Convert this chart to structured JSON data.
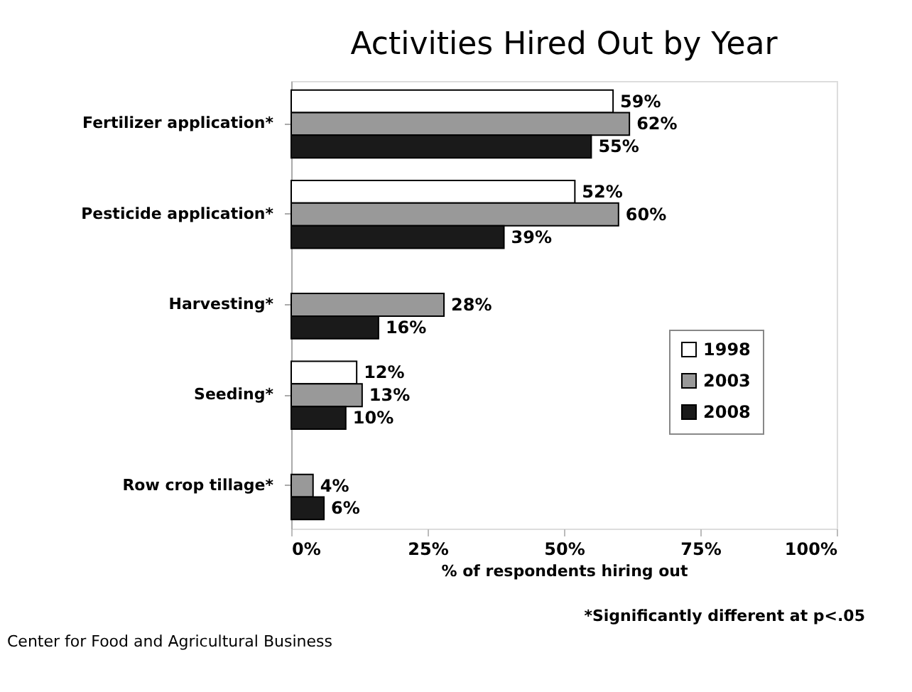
{
  "chart_data": {
    "type": "bar",
    "orientation": "horizontal",
    "title": "Activities Hired Out by Year",
    "xlabel": "% of respondents hiring out",
    "categories": [
      "Fertilizer application*",
      "Pesticide application*",
      "Harvesting*",
      "Seeding*",
      "Row crop tillage*"
    ],
    "series": [
      {
        "name": "1998",
        "color": "#ffffff",
        "values": [
          59,
          52,
          null,
          12,
          null
        ],
        "value_labels": [
          "59%",
          "52%",
          null,
          "12%",
          null
        ]
      },
      {
        "name": "2003",
        "color": "#999999",
        "values": [
          62,
          60,
          28,
          13,
          4
        ],
        "value_labels": [
          "62%",
          "60%",
          "28%",
          "13%",
          "4%"
        ]
      },
      {
        "name": "2008",
        "color": "#1a1a1a",
        "values": [
          55,
          39,
          16,
          10,
          6
        ],
        "value_labels": [
          "55%",
          "39%",
          "16%",
          "10%",
          "6%"
        ]
      }
    ],
    "xlim": [
      0,
      100
    ],
    "xticks": [
      {
        "value": 0,
        "label": "0%"
      },
      {
        "value": 25,
        "label": "25%"
      },
      {
        "value": 50,
        "label": "50%"
      },
      {
        "value": 75,
        "label": "75%"
      },
      {
        "value": 100,
        "label": "100%"
      }
    ],
    "grid": false,
    "legend": "right",
    "annotations": [
      "*Significantly different at p<.05",
      "Center for Food and Agricultural Business"
    ]
  }
}
